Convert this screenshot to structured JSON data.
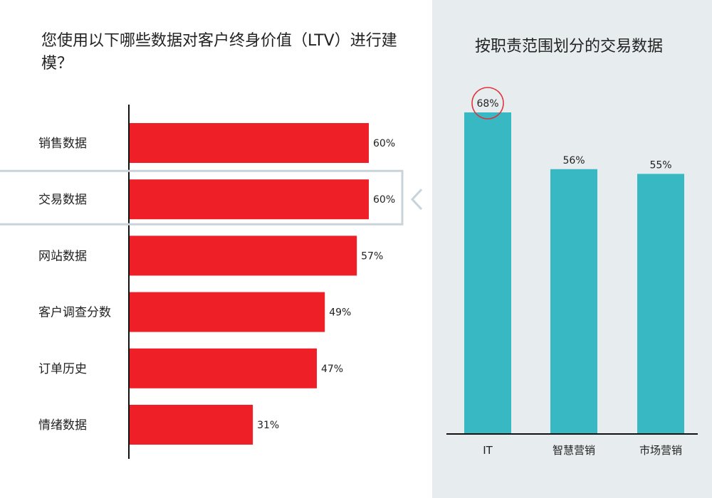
{
  "chart_data": [
    {
      "type": "bar",
      "orientation": "horizontal",
      "title": "您使用以下哪些数据对客户终身价值（LTV）进行建模？",
      "categories": [
        "销售数据",
        "交易数据",
        "网站数据",
        "客户调查分数",
        "订单历史",
        "情绪数据"
      ],
      "values": [
        60,
        60,
        57,
        49,
        47,
        31
      ],
      "value_labels": [
        "60%",
        "60%",
        "57%",
        "49%",
        "47%",
        "31%"
      ],
      "highlighted_category": "交易数据",
      "xlim": [
        0,
        100
      ],
      "bar_color": "#ee1f27",
      "highlight_color": "#c9d4da"
    },
    {
      "type": "bar",
      "orientation": "vertical",
      "title": "按职责范围划分的交易数据",
      "categories": [
        "IT",
        "智慧营销",
        "市场营销"
      ],
      "values": [
        68,
        56,
        55
      ],
      "value_labels": [
        "68%",
        "56%",
        "55%"
      ],
      "circled_category": "IT",
      "ylim": [
        0,
        100
      ],
      "bar_color": "#37b8c3",
      "circle_color": "#e0313a"
    }
  ]
}
